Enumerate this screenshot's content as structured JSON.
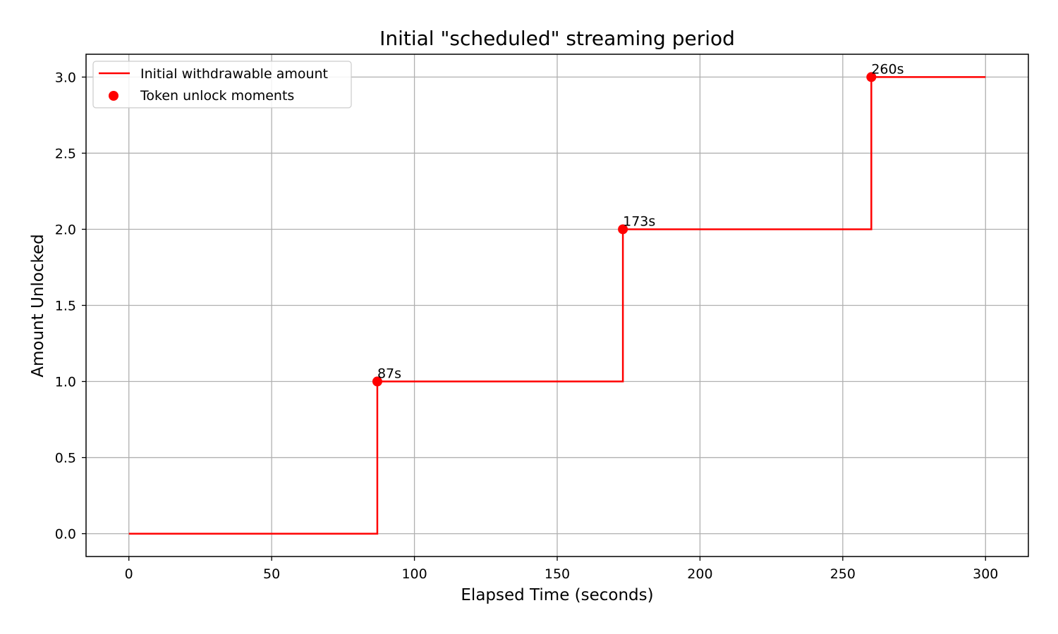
{
  "chart_data": {
    "type": "line",
    "title": "Initial \"scheduled\" streaming period",
    "xlabel": "Elapsed Time (seconds)",
    "ylabel": "Amount Unlocked",
    "xlim": [
      -15,
      315
    ],
    "ylim": [
      -0.15,
      3.15
    ],
    "xticks": [
      0,
      50,
      100,
      150,
      200,
      250,
      300
    ],
    "yticks": [
      0.0,
      0.5,
      1.0,
      1.5,
      2.0,
      2.5,
      3.0
    ],
    "xtick_labels": [
      "0",
      "50",
      "100",
      "150",
      "200",
      "250",
      "300"
    ],
    "ytick_labels": [
      "0.0",
      "0.5",
      "1.0",
      "1.5",
      "2.0",
      "2.5",
      "3.0"
    ],
    "grid": true,
    "legend_position": "top-left",
    "series": [
      {
        "name": "Initial withdrawable amount",
        "kind": "step",
        "color": "#ff0000",
        "x": [
          0,
          87,
          87,
          173,
          173,
          260,
          260,
          300
        ],
        "y": [
          0,
          0,
          1,
          1,
          2,
          2,
          3,
          3
        ]
      },
      {
        "name": "Token unlock moments",
        "kind": "scatter",
        "color": "#ff0000",
        "x": [
          87,
          173,
          260
        ],
        "y": [
          1,
          2,
          3
        ]
      }
    ],
    "annotations": [
      {
        "text": "87s",
        "x": 87,
        "y": 1
      },
      {
        "text": "173s",
        "x": 173,
        "y": 2
      },
      {
        "text": "260s",
        "x": 260,
        "y": 3
      }
    ]
  }
}
